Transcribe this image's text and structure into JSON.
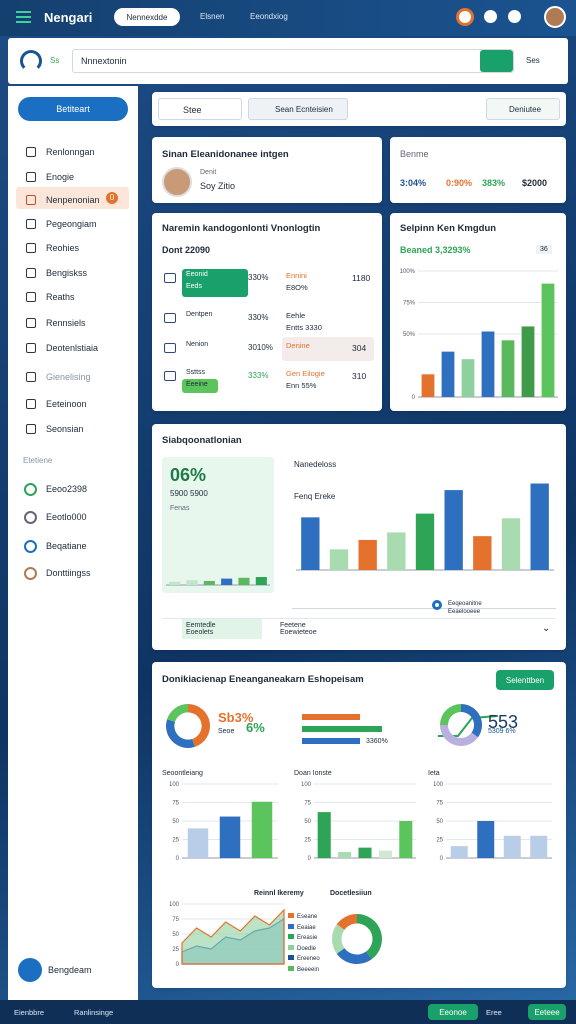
{
  "topbar": {
    "title": "Nengari",
    "tab": "Nennexdde",
    "links": [
      "Elsnen",
      "Eeondxiog"
    ]
  },
  "search": {
    "brand": "Ss",
    "query": "Nnnextonin",
    "action": "Ses"
  },
  "sidebar": {
    "button": "Betiteart",
    "nav": [
      "Renlonngan",
      "Enogie",
      "Nenpenonian",
      "Pegeongiam",
      "Reohies",
      "Bengiskss",
      "Reaths",
      "Rennsiels",
      "Deotenlstiaia",
      "Gienelising",
      "Eeteinoon",
      "Seonsian"
    ],
    "badge": "0",
    "section": "Etetiene",
    "links": [
      "Eeoo2398",
      "Eeotlo000",
      "Beqatiane",
      "Donttiingss"
    ],
    "footer": "Bengdeam"
  },
  "filters": {
    "select": "Stee",
    "button": "Sean Ecnteisien",
    "action": "Deniutee"
  },
  "profile": {
    "title": "Sinan Eleanidonanee intgen",
    "label": "Denit",
    "name": "Soy Zitio"
  },
  "summary": {
    "title": "Benme",
    "stats": [
      "3:04%",
      "0:90%",
      "383%",
      "$2000"
    ]
  },
  "rank": {
    "title": "Naremin kandogonlonti Vnonlogtin",
    "subtitle": "Dont 22090",
    "rows": [
      {
        "left": [
          "Eeonid",
          "Eeds"
        ],
        "value": "330%",
        "right": [
          "Ennini",
          "E8O%"
        ],
        "end": "1180"
      },
      {
        "left": [
          "Dentpen"
        ],
        "value": "330%",
        "right": [
          "Eehle",
          "Entts 3330"
        ],
        "end": ""
      },
      {
        "left": [
          "Nenion"
        ],
        "value": "3010%",
        "right": [
          "Denine"
        ],
        "end": "304"
      },
      {
        "left": [
          "Ssttss",
          "Eeeine"
        ],
        "value": "333%",
        "right": [
          "Gen Eilogie",
          "Enn 55%"
        ],
        "end": "310"
      }
    ]
  },
  "trend": {
    "title": "Selpinn Ken Kmgdun",
    "subtitle": "Beaned 3,3293%",
    "badge": "36"
  },
  "overview": {
    "title": "Siabqoonatlonian",
    "big": "06%",
    "sub": "5900 5900",
    "note": "Fenas",
    "legend": [
      "Nanedeloss",
      "Fenq Ereke"
    ],
    "key": [
      "Eeqeoanitne",
      "Eeaelooeee"
    ],
    "footer": [
      "Eemtedle",
      "Eoeolets",
      "Feetene",
      "Eoewieteoe"
    ]
  },
  "report": {
    "title": "Donikiacienap Eneanganeakarn Eshopeisam",
    "button": "Selenttben",
    "pct": "Sb3%",
    "pct2": "6%",
    "pct3": "Seoe",
    "bar": "3360%",
    "num": "553",
    "num2": "5309 6%",
    "panels": [
      "Seoontleiang",
      "Doan Ionste",
      "Ieta"
    ],
    "area_title": "Reinnl Ikeremy",
    "pie_title": "Docetlesiiun",
    "legend": [
      "Eseane",
      "Eeaiae",
      "Ereasie",
      "Doedle",
      "Ereeneo",
      "Beeeein"
    ]
  },
  "bottombar": {
    "left": [
      "Eienbbre",
      "Ranlinsinge"
    ],
    "right": [
      "Eeonoe",
      "Eree",
      "Eeteee"
    ]
  },
  "charts": [
    {
      "type": "bar",
      "values": [
        18,
        36,
        30,
        52,
        45,
        56,
        90
      ],
      "colors": [
        "#e4722c",
        "#2f6fbf",
        "#8fd19e",
        "#2f6fbf",
        "#5cb85c",
        "#3f9a4a",
        "#5cc45c"
      ],
      "ylim": [
        0,
        100
      ],
      "yticks": [
        0,
        {
          "value": 50,
          "label": "50%"
        },
        {
          "value": 75,
          "label": "75%"
        },
        {
          "value": 100,
          "label": "100%"
        }
      ]
    },
    {
      "type": "bar",
      "values": [
        56,
        22,
        32,
        40,
        60,
        85,
        36,
        55,
        92
      ],
      "colors": [
        "#2f6fbf",
        "#a8dcb0",
        "#e4722c",
        "#a8dcb0",
        "#2ea457",
        "#2f6fbf",
        "#e4722c",
        "#a8dcb0",
        "#2f6fbf"
      ],
      "ylim": [
        0,
        100
      ]
    },
    {
      "type": "bar",
      "values": [
        4,
        6,
        5,
        8,
        9,
        10
      ],
      "colors": [
        "#bfe6c8",
        "#bfe6c8",
        "#5cb85c",
        "#2f6fbf",
        "#5cb85c",
        "#2ea457"
      ],
      "ylim": [
        0,
        20
      ]
    },
    {
      "type": "bar",
      "values": [
        40,
        56,
        76
      ],
      "colors": [
        "#b8cde8",
        "#2f6fbf",
        "#5cc45c"
      ],
      "ylim": [
        0,
        100
      ],
      "yticks": [
        0,
        25,
        50,
        75,
        100
      ]
    },
    {
      "type": "bar",
      "values": [
        62,
        8,
        14,
        10,
        50
      ],
      "colors": [
        "#2ea457",
        "#a8dcb0",
        "#2ea457",
        "#cfe9d4",
        "#5cc45c"
      ],
      "ylim": [
        0,
        100
      ],
      "yticks": [
        0,
        25,
        50,
        75,
        100
      ]
    },
    {
      "type": "bar",
      "values": [
        16,
        50,
        30,
        30
      ],
      "colors": [
        "#b8cde8",
        "#2f6fbf",
        "#b8cde8",
        "#b8cde8"
      ],
      "ylim": [
        0,
        100
      ],
      "yticks": [
        0,
        25,
        50,
        75,
        100
      ]
    },
    {
      "type": "area",
      "ylim": [
        0,
        100
      ],
      "yticks": [
        0,
        25,
        50,
        75,
        100
      ],
      "series": [
        {
          "name": "Eseane",
          "color": "#7fb5e6",
          "values": [
            20,
            30,
            25,
            45,
            40,
            55,
            60,
            75
          ]
        },
        {
          "name": "Eeaiae",
          "color": "#8fd19e",
          "values": [
            35,
            60,
            45,
            70,
            55,
            80,
            65,
            90
          ]
        }
      ]
    },
    {
      "type": "donut",
      "values": [
        40,
        25,
        20,
        15
      ],
      "colors": [
        "#2ea457",
        "#2f6fbf",
        "#a8dcb0",
        "#e4722c"
      ]
    },
    {
      "type": "donut",
      "values": [
        45,
        35,
        20
      ],
      "colors": [
        "#e4722c",
        "#2f6fbf",
        "#5cc45c"
      ]
    },
    {
      "type": "donut",
      "values": [
        35,
        40,
        25
      ],
      "colors": [
        "#2f6fbf",
        "#b9b0e0",
        "#5cc45c"
      ]
    }
  ]
}
